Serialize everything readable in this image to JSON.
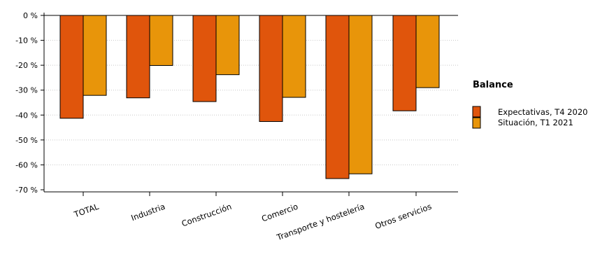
{
  "colors": {
    "series1": "#e0550c",
    "series2": "#e8950a"
  },
  "legend": {
    "title": "Balance",
    "items": [
      "Expectativas, T4 2020",
      "Situación, T1 2021"
    ]
  },
  "chart_data": {
    "type": "bar",
    "categories": [
      "TOTAL",
      "Industria",
      "Construcción",
      "Comercio",
      "Transporte y hostelería",
      "Otros servicios"
    ],
    "series": [
      {
        "name": "Expectativas, T4 2020",
        "values": [
          -41.3,
          -33.1,
          -34.6,
          -42.6,
          -65.5,
          -38.3
        ]
      },
      {
        "name": "Situación, T1 2021",
        "values": [
          -32.1,
          -20.1,
          -23.8,
          -32.9,
          -63.6,
          -29.0
        ]
      }
    ],
    "yticks": [
      "0 %",
      "-10 %",
      "-20 %",
      "-30 %",
      "-40 %",
      "-50 %",
      "-60 %",
      "-70 %"
    ],
    "ytick_values": [
      0,
      -10,
      -20,
      -30,
      -40,
      -50,
      -60,
      -70
    ],
    "ylim": [
      -70,
      0
    ],
    "grid": true,
    "legend_position": "right"
  }
}
